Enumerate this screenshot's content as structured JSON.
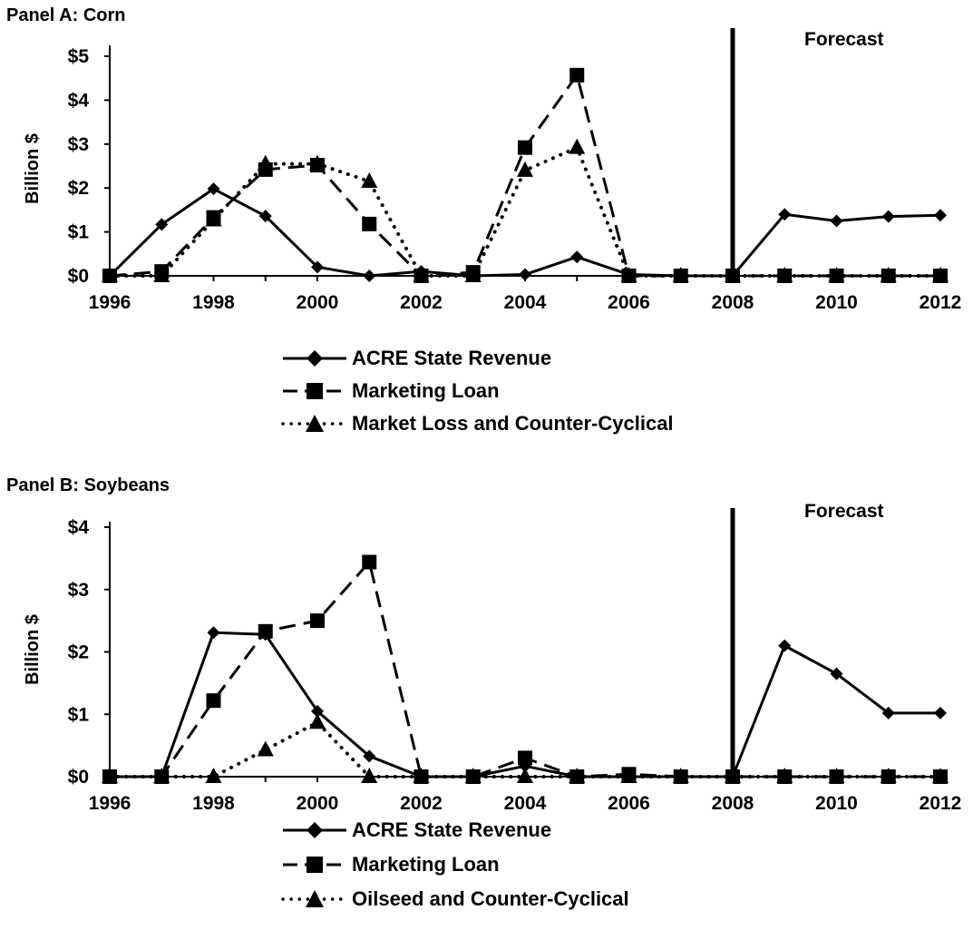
{
  "chart_data": [
    {
      "type": "line",
      "title": "Panel A: Corn",
      "ylabel": "Billion $",
      "xlabel": "",
      "categories": [
        "1996",
        "1997",
        "1998",
        "1999",
        "2000",
        "2001",
        "2002",
        "2003",
        "2004",
        "2005",
        "2006",
        "2007",
        "2008",
        "2009",
        "2010",
        "2011",
        "2012"
      ],
      "x_tick_labels": [
        "1996",
        "1998",
        "2000",
        "2002",
        "2004",
        "2006",
        "2008",
        "2010",
        "2012"
      ],
      "y_tick_labels": [
        "$0",
        "$1",
        "$2",
        "$3",
        "$4",
        "$5"
      ],
      "ylim": [
        0,
        5
      ],
      "annotation": "Forecast",
      "forecast_line_x": 2008,
      "grid": false,
      "legend_position": "bottom",
      "series": [
        {
          "name": "ACRE State Revenue",
          "marker": "diamond",
          "dash": "solid",
          "values": [
            0.0,
            1.17,
            1.98,
            1.36,
            0.2,
            0.0,
            0.1,
            0.0,
            0.03,
            0.43,
            0.03,
            0.0,
            0.0,
            1.4,
            1.25,
            1.35,
            1.38
          ]
        },
        {
          "name": "Marketing Loan",
          "marker": "square",
          "dash": "dashed",
          "values": [
            0.0,
            0.1,
            1.33,
            2.42,
            2.52,
            1.18,
            0.0,
            0.08,
            2.92,
            4.57,
            0.0,
            0.0,
            0.0,
            0.0,
            0.0,
            0.0,
            0.0
          ]
        },
        {
          "name": "Market Loss and Counter-Cyclical",
          "marker": "triangle",
          "dash": "dotted",
          "values": [
            0.0,
            0.0,
            1.27,
            2.55,
            2.55,
            2.15,
            0.0,
            0.0,
            2.4,
            2.92,
            0.0,
            0.0,
            0.0,
            0.0,
            0.0,
            0.0,
            0.0
          ]
        }
      ]
    },
    {
      "type": "line",
      "title": "Panel B: Soybeans",
      "ylabel": "Billion $",
      "xlabel": "",
      "categories": [
        "1996",
        "1997",
        "1998",
        "1999",
        "2000",
        "2001",
        "2002",
        "2003",
        "2004",
        "2005",
        "2006",
        "2007",
        "2008",
        "2009",
        "2010",
        "2011",
        "2012"
      ],
      "x_tick_labels": [
        "1996",
        "1998",
        "2000",
        "2002",
        "2004",
        "2006",
        "2008",
        "2010",
        "2012"
      ],
      "y_tick_labels": [
        "$0",
        "$1",
        "$2",
        "$3",
        "$4"
      ],
      "ylim": [
        0,
        4
      ],
      "annotation": "Forecast",
      "forecast_line_x": 2008,
      "grid": false,
      "legend_position": "bottom",
      "series": [
        {
          "name": "ACRE State Revenue",
          "marker": "diamond",
          "dash": "solid",
          "values": [
            0.0,
            0.0,
            2.31,
            2.28,
            1.05,
            0.33,
            0.0,
            0.0,
            0.17,
            0.0,
            0.0,
            0.0,
            0.0,
            2.1,
            1.65,
            1.02,
            1.02
          ]
        },
        {
          "name": "Marketing Loan",
          "marker": "square",
          "dash": "dashed",
          "values": [
            0.0,
            0.0,
            1.22,
            2.33,
            2.5,
            3.44,
            0.0,
            0.0,
            0.3,
            0.0,
            0.04,
            0.0,
            0.0,
            0.0,
            0.0,
            0.0,
            0.0
          ]
        },
        {
          "name": "Oilseed and Counter-Cyclical",
          "marker": "triangle",
          "dash": "dotted",
          "values": [
            0.0,
            0.0,
            0.0,
            0.43,
            0.87,
            0.0,
            0.0,
            0.0,
            0.0,
            0.0,
            0.0,
            0.0,
            0.0,
            0.0,
            0.0,
            0.0,
            0.0
          ]
        }
      ]
    }
  ]
}
